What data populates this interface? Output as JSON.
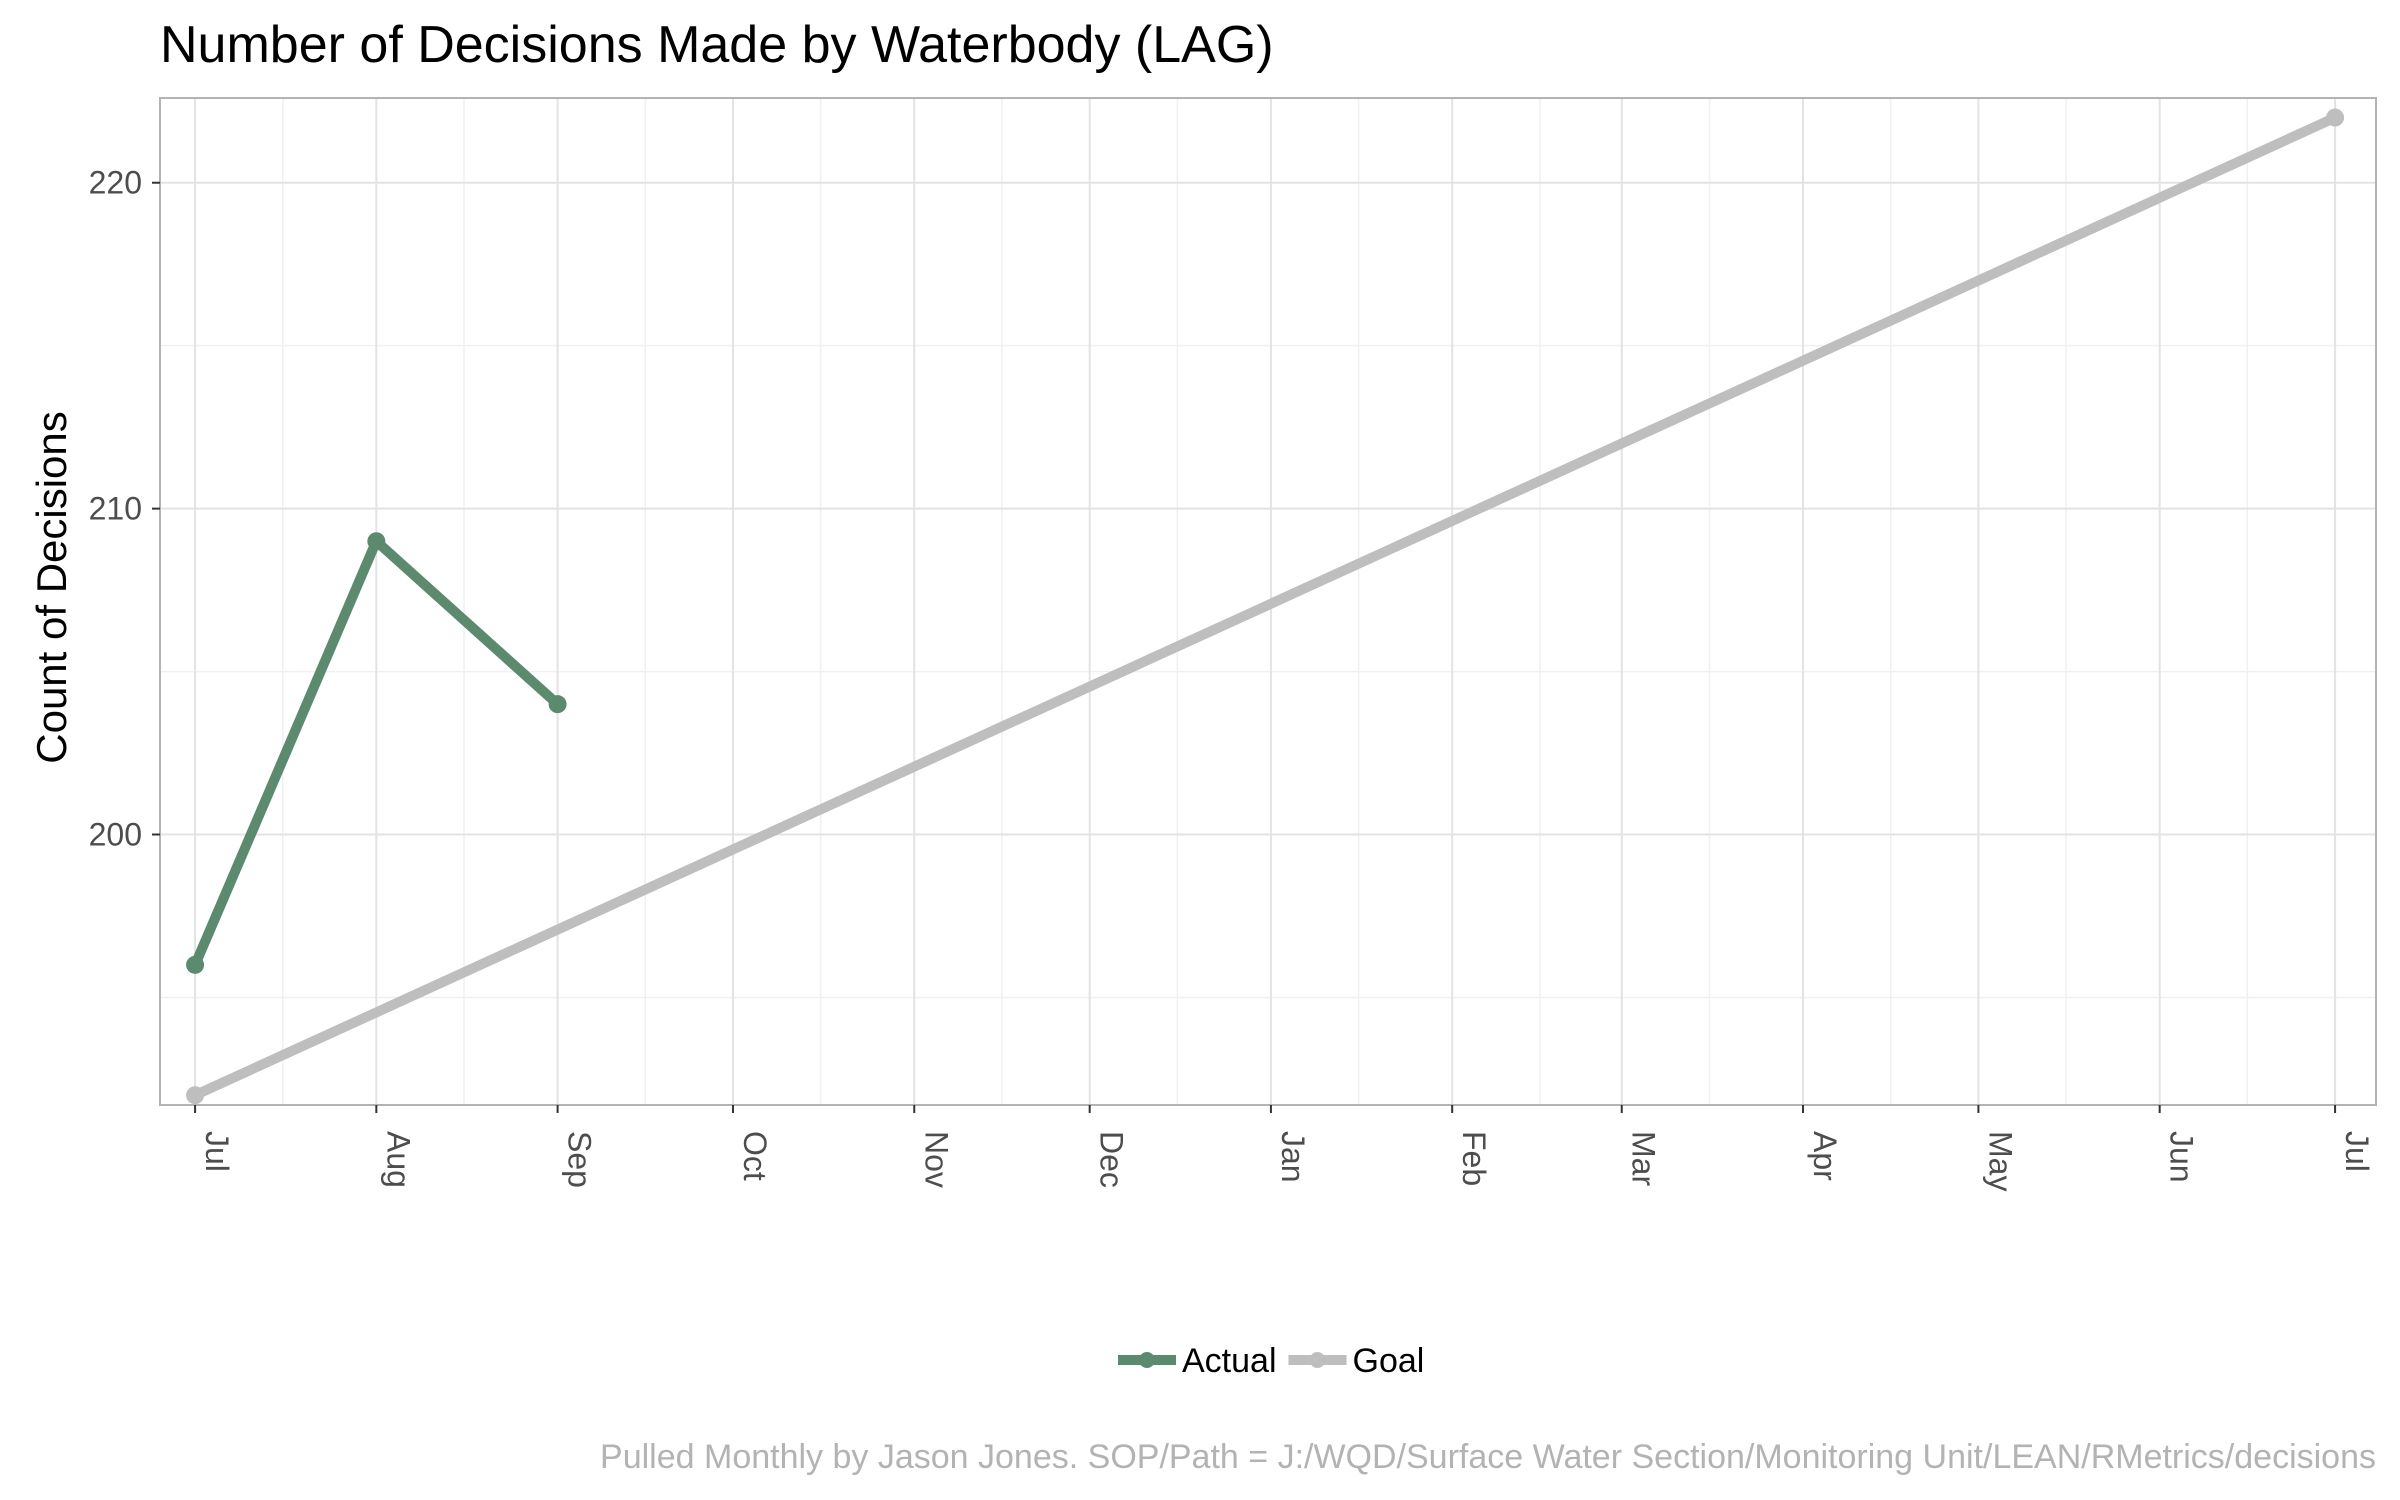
{
  "chart_data": {
    "type": "line",
    "title": "Number of Decisions Made by Waterbody (LAG)",
    "xlabel": "",
    "ylabel": "Count of Decisions",
    "caption": "Pulled Monthly by Jason Jones. SOP/Path = J:/WQD/Surface Water Section/Monitoring Unit/LEAN/RMetrics/decisions",
    "x_ticks": [
      "Jul",
      "Aug",
      "Sep",
      "Oct",
      "Nov",
      "Dec",
      "Jan",
      "Feb",
      "Mar",
      "Apr",
      "May",
      "Jun",
      "Jul"
    ],
    "y_ticks": [
      200,
      210,
      220
    ],
    "xlim": [
      "2023-06-25",
      "2024-07-08"
    ],
    "ylim": [
      191.7,
      222.6
    ],
    "grid": true,
    "legend_position": "bottom",
    "series": [
      {
        "name": "Actual",
        "color": "#5c8a6e",
        "points": [
          {
            "x": "2023-07-01",
            "y": 196
          },
          {
            "x": "2023-08-01",
            "y": 209
          },
          {
            "x": "2023-09-01",
            "y": 204
          }
        ]
      },
      {
        "name": "Goal",
        "color": "#bebebe",
        "points": [
          {
            "x": "2023-07-01",
            "y": 192
          },
          {
            "x": "2024-07-01",
            "y": 222
          }
        ]
      }
    ]
  }
}
